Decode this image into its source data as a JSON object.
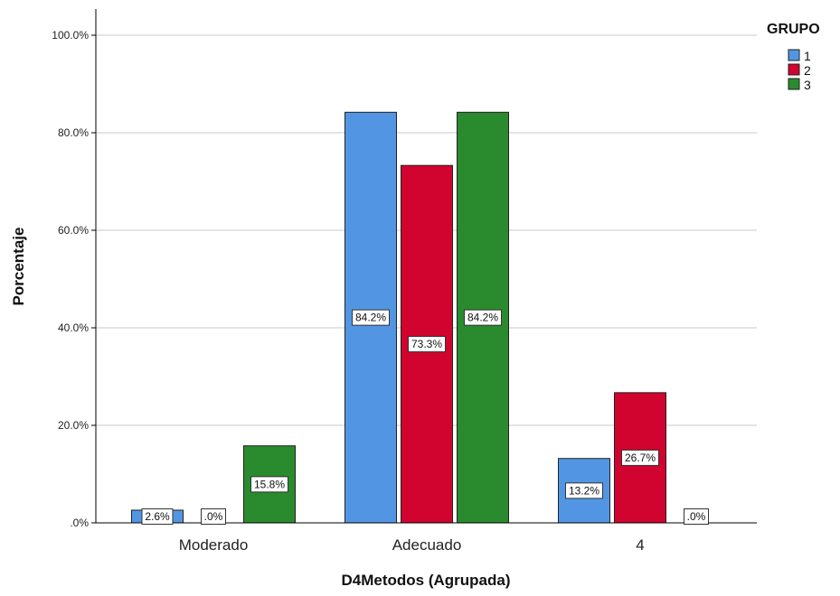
{
  "chart_data": {
    "type": "bar",
    "xlabel": "D4Metodos (Agrupada)",
    "ylabel": "Porcentaje",
    "categories": [
      "Moderado",
      "Adecuado",
      "4"
    ],
    "ylim": [
      0,
      105
    ],
    "yticks": [
      0,
      20,
      40,
      60,
      80,
      100
    ],
    "ytick_labels": [
      ".0%",
      "20.0%",
      "40.0%",
      "60.0%",
      "80.0%",
      "100.0%"
    ],
    "grid": true,
    "legend": {
      "title": "GRUPO",
      "position": "top-right"
    },
    "series": [
      {
        "name": "1",
        "color": "#5296e3",
        "values": [
          2.6,
          84.2,
          13.2
        ],
        "labels": [
          "2.6%",
          "84.2%",
          "13.2%"
        ]
      },
      {
        "name": "2",
        "color": "#d0042e",
        "values": [
          0.0,
          73.3,
          26.7
        ],
        "labels": [
          ".0%",
          "73.3%",
          "26.7%"
        ]
      },
      {
        "name": "3",
        "color": "#2a8a2e",
        "values": [
          15.8,
          84.2,
          0.0
        ],
        "labels": [
          "15.8%",
          "84.2%",
          ".0%"
        ]
      }
    ]
  }
}
